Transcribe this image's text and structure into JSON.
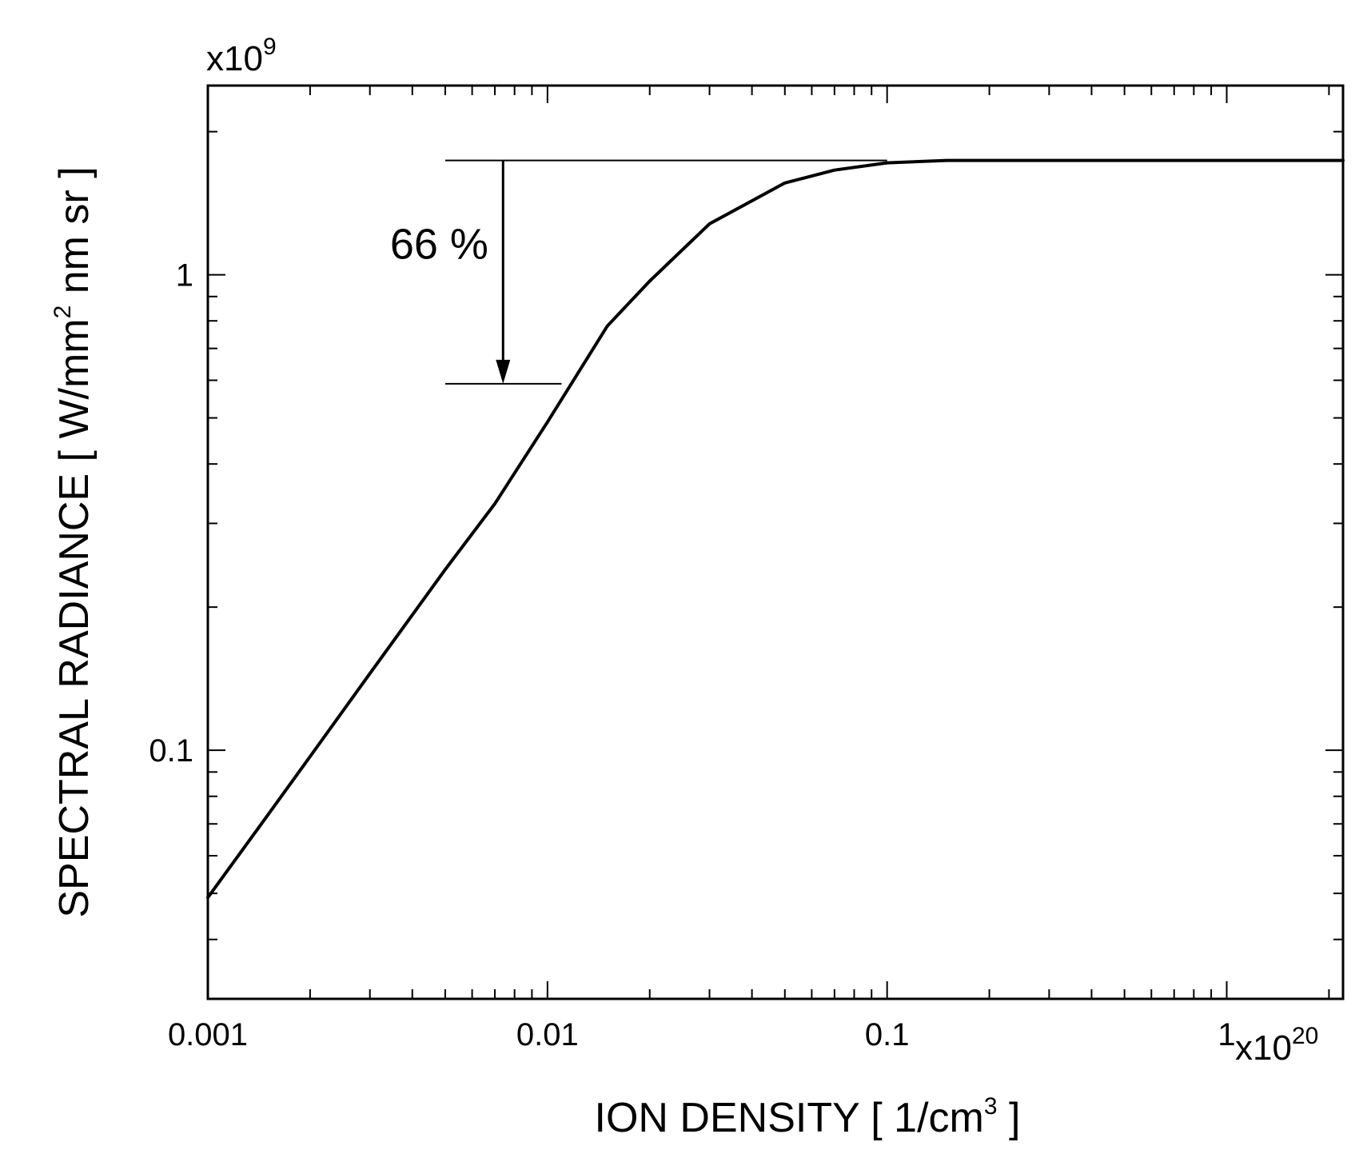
{
  "chart_data": {
    "type": "line",
    "title": "",
    "xlabel": "ION DENSITY [ 1/cm",
    "xlabel_sup": "3",
    "xlabel_end": " ]",
    "ylabel": "SPECTRAL RADIANCE [ W/mm",
    "ylabel_sup": "2",
    "ylabel_end": " nm sr ]",
    "x_multiplier": "x10",
    "x_multiplier_exp": "20",
    "y_multiplier": "x10",
    "y_multiplier_exp": "9",
    "xscale": "log",
    "yscale": "log",
    "xlim": [
      0.001,
      2.2
    ],
    "ylim": [
      0.03,
      2.5
    ],
    "x_ticks": [
      {
        "value": 0.001,
        "label": "0.001"
      },
      {
        "value": 0.01,
        "label": "0.01"
      },
      {
        "value": 0.1,
        "label": "0.1"
      },
      {
        "value": 1,
        "label": "1"
      }
    ],
    "y_ticks": [
      {
        "value": 0.1,
        "label": "0.1"
      },
      {
        "value": 1,
        "label": "1"
      }
    ],
    "grid": false,
    "series": [
      {
        "x": [
          0.001,
          0.0015,
          0.002,
          0.003,
          0.005,
          0.007,
          0.01,
          0.015,
          0.02,
          0.03,
          0.05,
          0.07,
          0.1,
          0.15,
          0.2,
          0.5,
          1,
          2.2
        ],
        "y": [
          0.049,
          0.073,
          0.097,
          0.145,
          0.24,
          0.33,
          0.49,
          0.78,
          0.97,
          1.28,
          1.56,
          1.66,
          1.72,
          1.74,
          1.74,
          1.74,
          1.74,
          1.74
        ]
      }
    ],
    "annotations": {
      "upper_level": 1.74,
      "lower_level": 0.59,
      "line_x_start": 0.005,
      "upper_line_x_end": 0.1,
      "lower_line_x_end": 0.011,
      "arrow_x": 0.0074,
      "label": "66 %",
      "label_x": 0.0048,
      "label_y": 1.08
    }
  }
}
